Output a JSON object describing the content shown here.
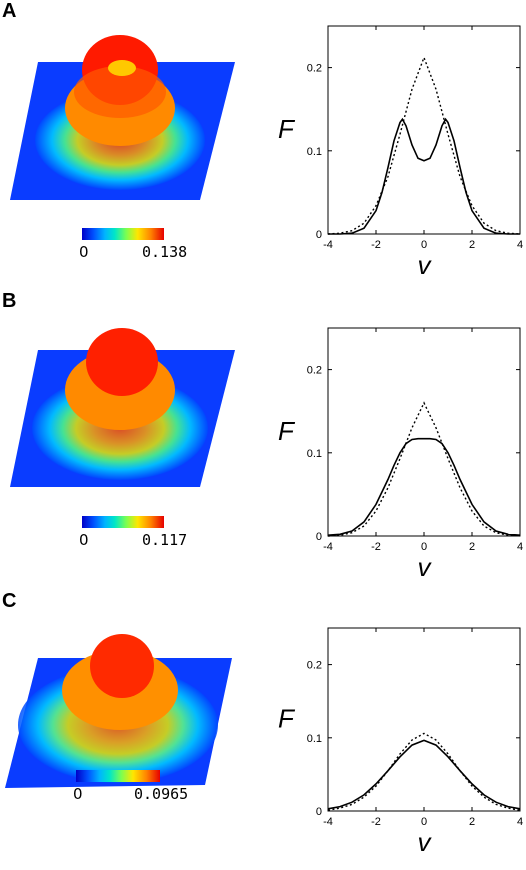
{
  "panels": [
    {
      "letter": "A",
      "colorbar": {
        "min": "0",
        "max": "0.138"
      },
      "chart_data": {
        "type": "line",
        "xlabel": "v",
        "ylabel": "F",
        "xlim": [
          -4,
          4
        ],
        "ylim": [
          0,
          0.25
        ],
        "xticks": [
          "-4",
          "-2",
          "0",
          "2",
          "4"
        ],
        "yticks": [
          "0",
          "0.1",
          "0.2"
        ],
        "series": [
          {
            "style": "solid",
            "x": [
              -4,
              -3.5,
              -3,
              -2.5,
              -2,
              -1.75,
              -1.5,
              -1.25,
              -1,
              -0.9,
              -0.75,
              -0.5,
              -0.25,
              0,
              0.25,
              0.5,
              0.75,
              0.9,
              1,
              1.25,
              1.5,
              1.75,
              2,
              2.5,
              3,
              3.5,
              4
            ],
            "y": [
              0.0,
              0.0,
              0.001,
              0.007,
              0.028,
              0.05,
              0.08,
              0.112,
              0.134,
              0.138,
              0.13,
              0.107,
              0.091,
              0.088,
              0.091,
              0.107,
              0.13,
              0.138,
              0.134,
              0.112,
              0.08,
              0.05,
              0.028,
              0.007,
              0.001,
              0.0,
              0.0
            ]
          },
          {
            "style": "dotted",
            "x": [
              -4,
              -3.5,
              -3,
              -2.5,
              -2,
              -1.5,
              -1,
              -0.5,
              0,
              0.5,
              1,
              1.5,
              2,
              2.5,
              3,
              3.5,
              4
            ],
            "y": [
              0.0,
              0.001,
              0.004,
              0.013,
              0.034,
              0.069,
              0.12,
              0.174,
              0.212,
              0.174,
              0.12,
              0.069,
              0.034,
              0.013,
              0.004,
              0.001,
              0.0
            ]
          }
        ]
      }
    },
    {
      "letter": "B",
      "colorbar": {
        "min": "0",
        "max": "0.117"
      },
      "chart_data": {
        "type": "line",
        "xlabel": "v",
        "ylabel": "F",
        "xlim": [
          -4,
          4
        ],
        "ylim": [
          0,
          0.25
        ],
        "xticks": [
          "-4",
          "-2",
          "0",
          "2",
          "4"
        ],
        "yticks": [
          "0",
          "0.1",
          "0.2"
        ],
        "series": [
          {
            "style": "solid",
            "x": [
              -4,
              -3.5,
              -3,
              -2.5,
              -2,
              -1.5,
              -1.25,
              -1,
              -0.75,
              -0.5,
              -0.25,
              0,
              0.25,
              0.5,
              0.75,
              1,
              1.25,
              1.5,
              2,
              2.5,
              3,
              3.5,
              4
            ],
            "y": [
              0.001,
              0.002,
              0.006,
              0.017,
              0.038,
              0.068,
              0.085,
              0.1,
              0.111,
              0.116,
              0.117,
              0.117,
              0.117,
              0.116,
              0.111,
              0.1,
              0.085,
              0.068,
              0.038,
              0.017,
              0.006,
              0.002,
              0.001
            ]
          },
          {
            "style": "dotted",
            "x": [
              -4,
              -3.5,
              -3,
              -2.5,
              -2,
              -1.5,
              -1,
              -0.5,
              0,
              0.5,
              1,
              1.5,
              2,
              2.5,
              3,
              3.5,
              4
            ],
            "y": [
              0.0,
              0.001,
              0.004,
              0.012,
              0.03,
              0.058,
              0.093,
              0.13,
              0.16,
              0.13,
              0.093,
              0.058,
              0.03,
              0.012,
              0.004,
              0.001,
              0.0
            ]
          }
        ]
      }
    },
    {
      "letter": "C",
      "colorbar": {
        "min": "0",
        "max": "0.0965"
      },
      "chart_data": {
        "type": "line",
        "xlabel": "v",
        "ylabel": "F",
        "xlim": [
          -4,
          4
        ],
        "ylim": [
          0,
          0.25
        ],
        "xticks": [
          "-4",
          "-2",
          "0",
          "2",
          "4"
        ],
        "yticks": [
          "0",
          "0.1",
          "0.2"
        ],
        "series": [
          {
            "style": "solid",
            "x": [
              -4,
              -3.5,
              -3,
              -2.5,
              -2,
              -1.5,
              -1,
              -0.5,
              0,
              0.5,
              1,
              1.5,
              2,
              2.5,
              3,
              3.5,
              4
            ],
            "y": [
              0.003,
              0.006,
              0.012,
              0.022,
              0.037,
              0.055,
              0.074,
              0.09,
              0.0965,
              0.09,
              0.074,
              0.055,
              0.037,
              0.022,
              0.012,
              0.006,
              0.003
            ]
          },
          {
            "style": "dotted",
            "x": [
              -4,
              -3.5,
              -3,
              -2.5,
              -2,
              -1.5,
              -1,
              -0.5,
              0,
              0.5,
              1,
              1.5,
              2,
              2.5,
              3,
              3.5,
              4
            ],
            "y": [
              0.001,
              0.004,
              0.009,
              0.019,
              0.034,
              0.055,
              0.078,
              0.097,
              0.106,
              0.097,
              0.078,
              0.055,
              0.034,
              0.019,
              0.009,
              0.004,
              0.001
            ]
          }
        ]
      }
    }
  ]
}
